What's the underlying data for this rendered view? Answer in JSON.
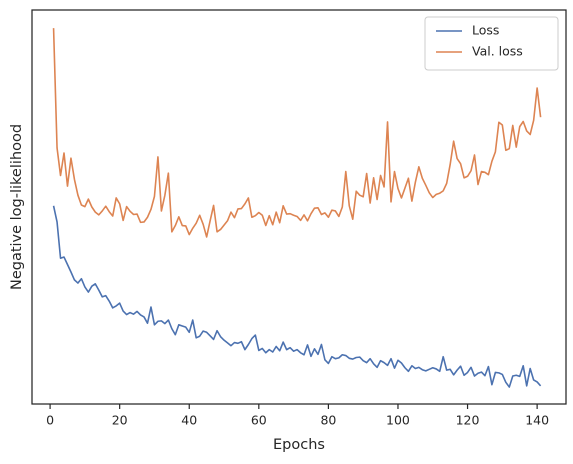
{
  "chart_data": {
    "type": "line",
    "x_label": "Epochs",
    "y_label": "Negative log-likelihood",
    "x": [
      1,
      2,
      3,
      4,
      5,
      6,
      7,
      8,
      9,
      10,
      11,
      12,
      13,
      14,
      15,
      16,
      17,
      18,
      19,
      20,
      21,
      22,
      23,
      24,
      25,
      26,
      27,
      28,
      29,
      30,
      31,
      32,
      33,
      34,
      35,
      36,
      37,
      38,
      39,
      40,
      41,
      42,
      43,
      44,
      45,
      46,
      47,
      48,
      49,
      50,
      51,
      52,
      53,
      54,
      55,
      56,
      57,
      58,
      59,
      60,
      61,
      62,
      63,
      64,
      65,
      66,
      67,
      68,
      69,
      70,
      71,
      72,
      73,
      74,
      75,
      76,
      77,
      78,
      79,
      80,
      81,
      82,
      83,
      84,
      85,
      86,
      87,
      88,
      89,
      90,
      91,
      92,
      93,
      94,
      95,
      96,
      97,
      98,
      99,
      100,
      101,
      102,
      103,
      104,
      105,
      106,
      107,
      108,
      109,
      110,
      111,
      112,
      113,
      114,
      115,
      116,
      117,
      118,
      119,
      120,
      121,
      122,
      123,
      124,
      125,
      126,
      127,
      128,
      129,
      130,
      131,
      132,
      133,
      134,
      135,
      136,
      137,
      138,
      139,
      140,
      141
    ],
    "series": [
      {
        "name": "Loss",
        "color": "#4c72b0",
        "values": [
          50.3,
          46.2,
          37.0,
          37.3,
          35.4,
          33.5,
          31.5,
          30.7,
          31.8,
          29.7,
          28.4,
          29.9,
          30.5,
          28.9,
          27.2,
          27.5,
          26.1,
          24.4,
          24.9,
          25.6,
          23.6,
          22.7,
          23.2,
          22.8,
          23.5,
          22.6,
          22.1,
          20.5,
          24.6,
          20.1,
          21.0,
          21.1,
          20.4,
          21.3,
          19.1,
          17.6,
          20.1,
          19.8,
          19.5,
          18.2,
          21.3,
          16.8,
          17.2,
          18.5,
          18.2,
          17.3,
          16.4,
          18.6,
          17.1,
          16.2,
          15.5,
          14.8,
          15.6,
          15.4,
          15.8,
          13.8,
          15.1,
          16.6,
          17.5,
          13.6,
          14.1,
          13.0,
          13.8,
          13.2,
          14.6,
          13.5,
          15.7,
          13.8,
          14.3,
          13.4,
          13.8,
          13.0,
          12.5,
          15.0,
          12.1,
          14.0,
          12.6,
          15.1,
          11.2,
          10.3,
          12.0,
          11.5,
          11.7,
          12.5,
          12.3,
          11.6,
          11.4,
          11.8,
          11.9,
          11.0,
          10.5,
          11.5,
          10.2,
          9.3,
          11.0,
          10.5,
          9.8,
          11.5,
          9.1,
          11.1,
          10.4,
          9.2,
          8.3,
          9.7,
          9.0,
          9.3,
          8.7,
          8.4,
          8.8,
          9.2,
          8.9,
          8.3,
          12.0,
          8.6,
          8.8,
          7.4,
          8.6,
          9.6,
          7.3,
          8.0,
          9.3,
          7.1,
          7.8,
          8.1,
          7.2,
          9.5,
          4.9,
          8.0,
          7.9,
          7.5,
          5.5,
          4.3,
          7.1,
          7.3,
          7.0,
          9.7,
          4.6,
          9.0,
          6.1,
          5.6,
          4.6
        ]
      },
      {
        "name": "Val. loss",
        "color": "#dd8452",
        "values": [
          95.4,
          65.0,
          58.0,
          63.7,
          55.3,
          62.4,
          57.0,
          53.0,
          50.5,
          50.1,
          52.0,
          50.0,
          48.7,
          48.0,
          49.0,
          50.2,
          48.8,
          47.7,
          52.3,
          50.8,
          46.6,
          50.1,
          48.9,
          48.1,
          48.2,
          46.1,
          46.2,
          47.4,
          49.4,
          52.7,
          62.7,
          49.0,
          53.0,
          58.6,
          43.7,
          45.3,
          47.5,
          45.3,
          45.2,
          43.0,
          44.6,
          45.9,
          47.9,
          45.6,
          42.4,
          46.5,
          50.4,
          43.7,
          44.3,
          45.4,
          46.5,
          48.7,
          47.3,
          49.5,
          49.6,
          50.8,
          52.3,
          47.4,
          47.8,
          48.6,
          47.9,
          45.3,
          47.8,
          45.5,
          48.7,
          46.0,
          50.3,
          48.2,
          48.3,
          47.9,
          47.6,
          46.6,
          48.0,
          46.5,
          48.3,
          49.7,
          49.8,
          48.1,
          48.5,
          47.4,
          49.2,
          49.0,
          47.6,
          50.0,
          59.0,
          50.3,
          46.9,
          54.0,
          53.0,
          52.6,
          58.5,
          51.0,
          57.4,
          51.9,
          58.0,
          55.1,
          71.6,
          51.3,
          59.0,
          54.7,
          52.3,
          54.8,
          57.3,
          51.5,
          56.3,
          60.2,
          57.3,
          55.5,
          53.6,
          52.4,
          53.2,
          53.5,
          54.1,
          56.0,
          60.8,
          66.7,
          62.3,
          61.0,
          57.4,
          57.8,
          59.2,
          63.2,
          55.7,
          59.0,
          58.8,
          58.2,
          61.6,
          64.0,
          71.5,
          70.8,
          64.4,
          64.8,
          70.7,
          65.2,
          70.4,
          71.7,
          69.3,
          68.4,
          72.0,
          80.2,
          72.8
        ]
      }
    ],
    "xlim": [
      -5.2,
      148.3
    ],
    "xticks": [
      0,
      20,
      40,
      60,
      80,
      100,
      120,
      140
    ],
    "ylim": [
      0,
      100
    ],
    "legend": "upper right",
    "grid": false
  }
}
